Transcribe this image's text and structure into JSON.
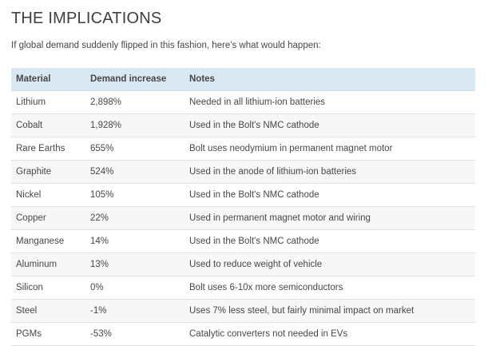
{
  "header": {
    "title": "THE IMPLICATIONS",
    "subtitle": "If global demand suddenly flipped in this fashion, here's what would happen:"
  },
  "table": {
    "columns": [
      "Material",
      "Demand increase",
      "Notes"
    ],
    "rows": [
      {
        "material": "Lithium",
        "demand_increase": "2,898%",
        "notes": "Needed in all lithium-ion batteries"
      },
      {
        "material": "Cobalt",
        "demand_increase": "1,928%",
        "notes": "Used in the Bolt's NMC cathode"
      },
      {
        "material": "Rare Earths",
        "demand_increase": "655%",
        "notes": "Bolt uses neodymium in permanent magnet motor"
      },
      {
        "material": "Graphite",
        "demand_increase": "524%",
        "notes": "Used in the anode of lithium-ion batteries"
      },
      {
        "material": "Nickel",
        "demand_increase": "105%",
        "notes": "Used in the Bolt's NMC cathode"
      },
      {
        "material": "Copper",
        "demand_increase": "22%",
        "notes": "Used in permanent magnet motor and wiring"
      },
      {
        "material": "Manganese",
        "demand_increase": "14%",
        "notes": "Used in the Bolt's NMC cathode"
      },
      {
        "material": "Aluminum",
        "demand_increase": "13%",
        "notes": "Used to reduce weight of vehicle"
      },
      {
        "material": "Silicon",
        "demand_increase": "0%",
        "notes": "Bolt uses 6-10x more semiconductors"
      },
      {
        "material": "Steel",
        "demand_increase": "-1%",
        "notes": "Uses 7% less steel, but fairly minimal impact on market"
      },
      {
        "material": "PGMs",
        "demand_increase": "-53%",
        "notes": "Catalytic converters not needed in EVs"
      }
    ]
  },
  "colors": {
    "header_row_bg": "#d9e8f2",
    "alt_row_bg": "#f7f7f7",
    "row_border": "#e0e0e0",
    "text": "#474747",
    "title": "#3e3e3e"
  }
}
